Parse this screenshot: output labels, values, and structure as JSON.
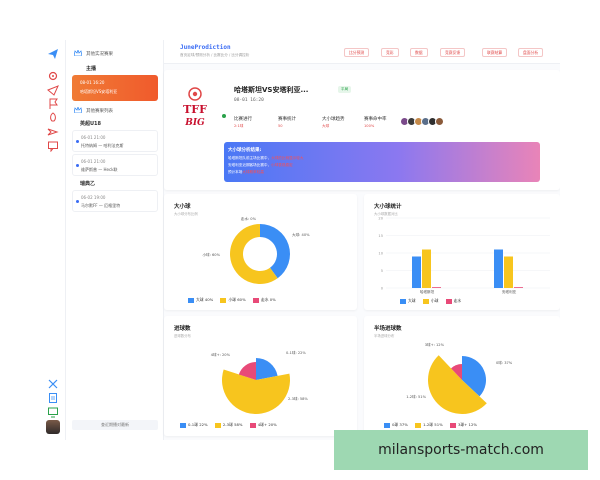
{
  "app": {
    "brand": "JuneProdiction",
    "breadcrumb": "首页足球/预测分析 / 比赛比分 / 比分调控析"
  },
  "header_buttons": [
    "比分预测",
    "竞彩",
    "数据",
    "竞赛反馈",
    "联赛结算",
    "盘面分析"
  ],
  "list": {
    "section1": "其他实况赛果",
    "group1": "主播",
    "section2": "其他赛果列表",
    "group2": "英超U18",
    "group3": "瑞典乙",
    "footer": "查近期播对最新",
    "cards": [
      {
        "time": "08-01 16:20",
        "desc": "哈塔斯坦VS安塔利亚"
      },
      {
        "time": "06-01 21:00",
        "desc": "托特纳姆  —  哈利法克斯"
      },
      {
        "time": "06-01 21:00",
        "desc": "维萨斯普  —  Heck联"
      },
      {
        "time": "06-02 19:00",
        "desc": "马尔默FF  —  厄格里特"
      }
    ]
  },
  "match": {
    "title": "哈塔斯坦VS安塔利亚...",
    "status": "平局",
    "time": "08-01 16:20",
    "logo_text_1": "TFF",
    "logo_text_2": "BIG",
    "stats": [
      {
        "label": "比赛进行",
        "value": "2:1球"
      },
      {
        "label": "赛事统计",
        "value": "50"
      },
      {
        "label": "大小球趋势",
        "value": "大球"
      },
      {
        "label": "赛事命中率",
        "value": "100%"
      }
    ],
    "banner": {
      "title": "大小球分析结果:",
      "lines": [
        {
          "text": "哈塔斯坦队前主场比赛中，",
          "highlight": "大球的比例显示较大"
        },
        {
          "text": "安塔利亚近期客场比赛中，",
          "highlight": "小球表现稳定"
        },
        {
          "text": "预计本场",
          "highlight": "大球概率较高"
        }
      ]
    }
  },
  "panels": {
    "p1_title": "大小球",
    "p1_sub": "大小球分布比例",
    "p2_title": "大小球统计",
    "p2_sub": "大小球数据对比",
    "p3_title": "进球数",
    "p3_sub": "进球数分布",
    "p4_title": "半场进球数",
    "p4_sub": "半场进球分布"
  },
  "chart_data": [
    {
      "type": "pie",
      "title": "大小球",
      "labels": [
        "大球",
        "小球",
        "走水"
      ],
      "values": [
        40,
        60,
        0
      ],
      "colors": [
        "#3a8ef5",
        "#f7c51e",
        "#e84a78"
      ],
      "legend": "bottom",
      "legend_labels": [
        "大球 40%",
        "小球 60%",
        "走水 0%"
      ],
      "slice_labels": [
        "走水: 0%",
        "大球: 40%",
        "小球: 60%"
      ]
    },
    {
      "type": "bar",
      "title": "大小球统计",
      "categories": [
        "哈塔斯坦",
        "安塔利亚"
      ],
      "series": [
        {
          "name": "大球",
          "values": [
            9,
            11
          ],
          "color": "#3a8ef5"
        },
        {
          "name": "小球",
          "values": [
            11,
            9
          ],
          "color": "#f7c51e"
        },
        {
          "name": "走水",
          "values": [
            0,
            0
          ],
          "color": "#e84a78"
        }
      ],
      "ylim": [
        0,
        20
      ],
      "yticks": [
        0,
        5,
        10,
        15,
        20
      ],
      "legend": "bottom"
    },
    {
      "type": "pie",
      "title": "进球数",
      "labels": [
        "0-1球",
        "2-3球",
        "4球+"
      ],
      "values": [
        22,
        58,
        20
      ],
      "colors": [
        "#3a8ef5",
        "#f7c51e",
        "#e84a78"
      ],
      "legend": "bottom",
      "legend_labels": [
        "0-1球 22%",
        "2-3球 58%",
        "4球+ 20%"
      ],
      "slice_labels": [
        "4球+: 20%",
        "0-1球: 22%",
        "2-3球: 58%"
      ]
    },
    {
      "type": "pie",
      "title": "半场进球数",
      "labels": [
        "0球",
        "1-2球",
        "3球+"
      ],
      "values": [
        37,
        51,
        12
      ],
      "colors": [
        "#3a8ef5",
        "#f7c51e",
        "#e84a78"
      ],
      "legend": "bottom",
      "legend_labels": [
        "0球 37%",
        "1-2球 51%",
        "3球+ 12%"
      ],
      "slice_labels": [
        "3球+: 12%",
        "0球: 37%",
        "1-2球: 51%"
      ]
    }
  ],
  "watermark": "milansports-match.com"
}
